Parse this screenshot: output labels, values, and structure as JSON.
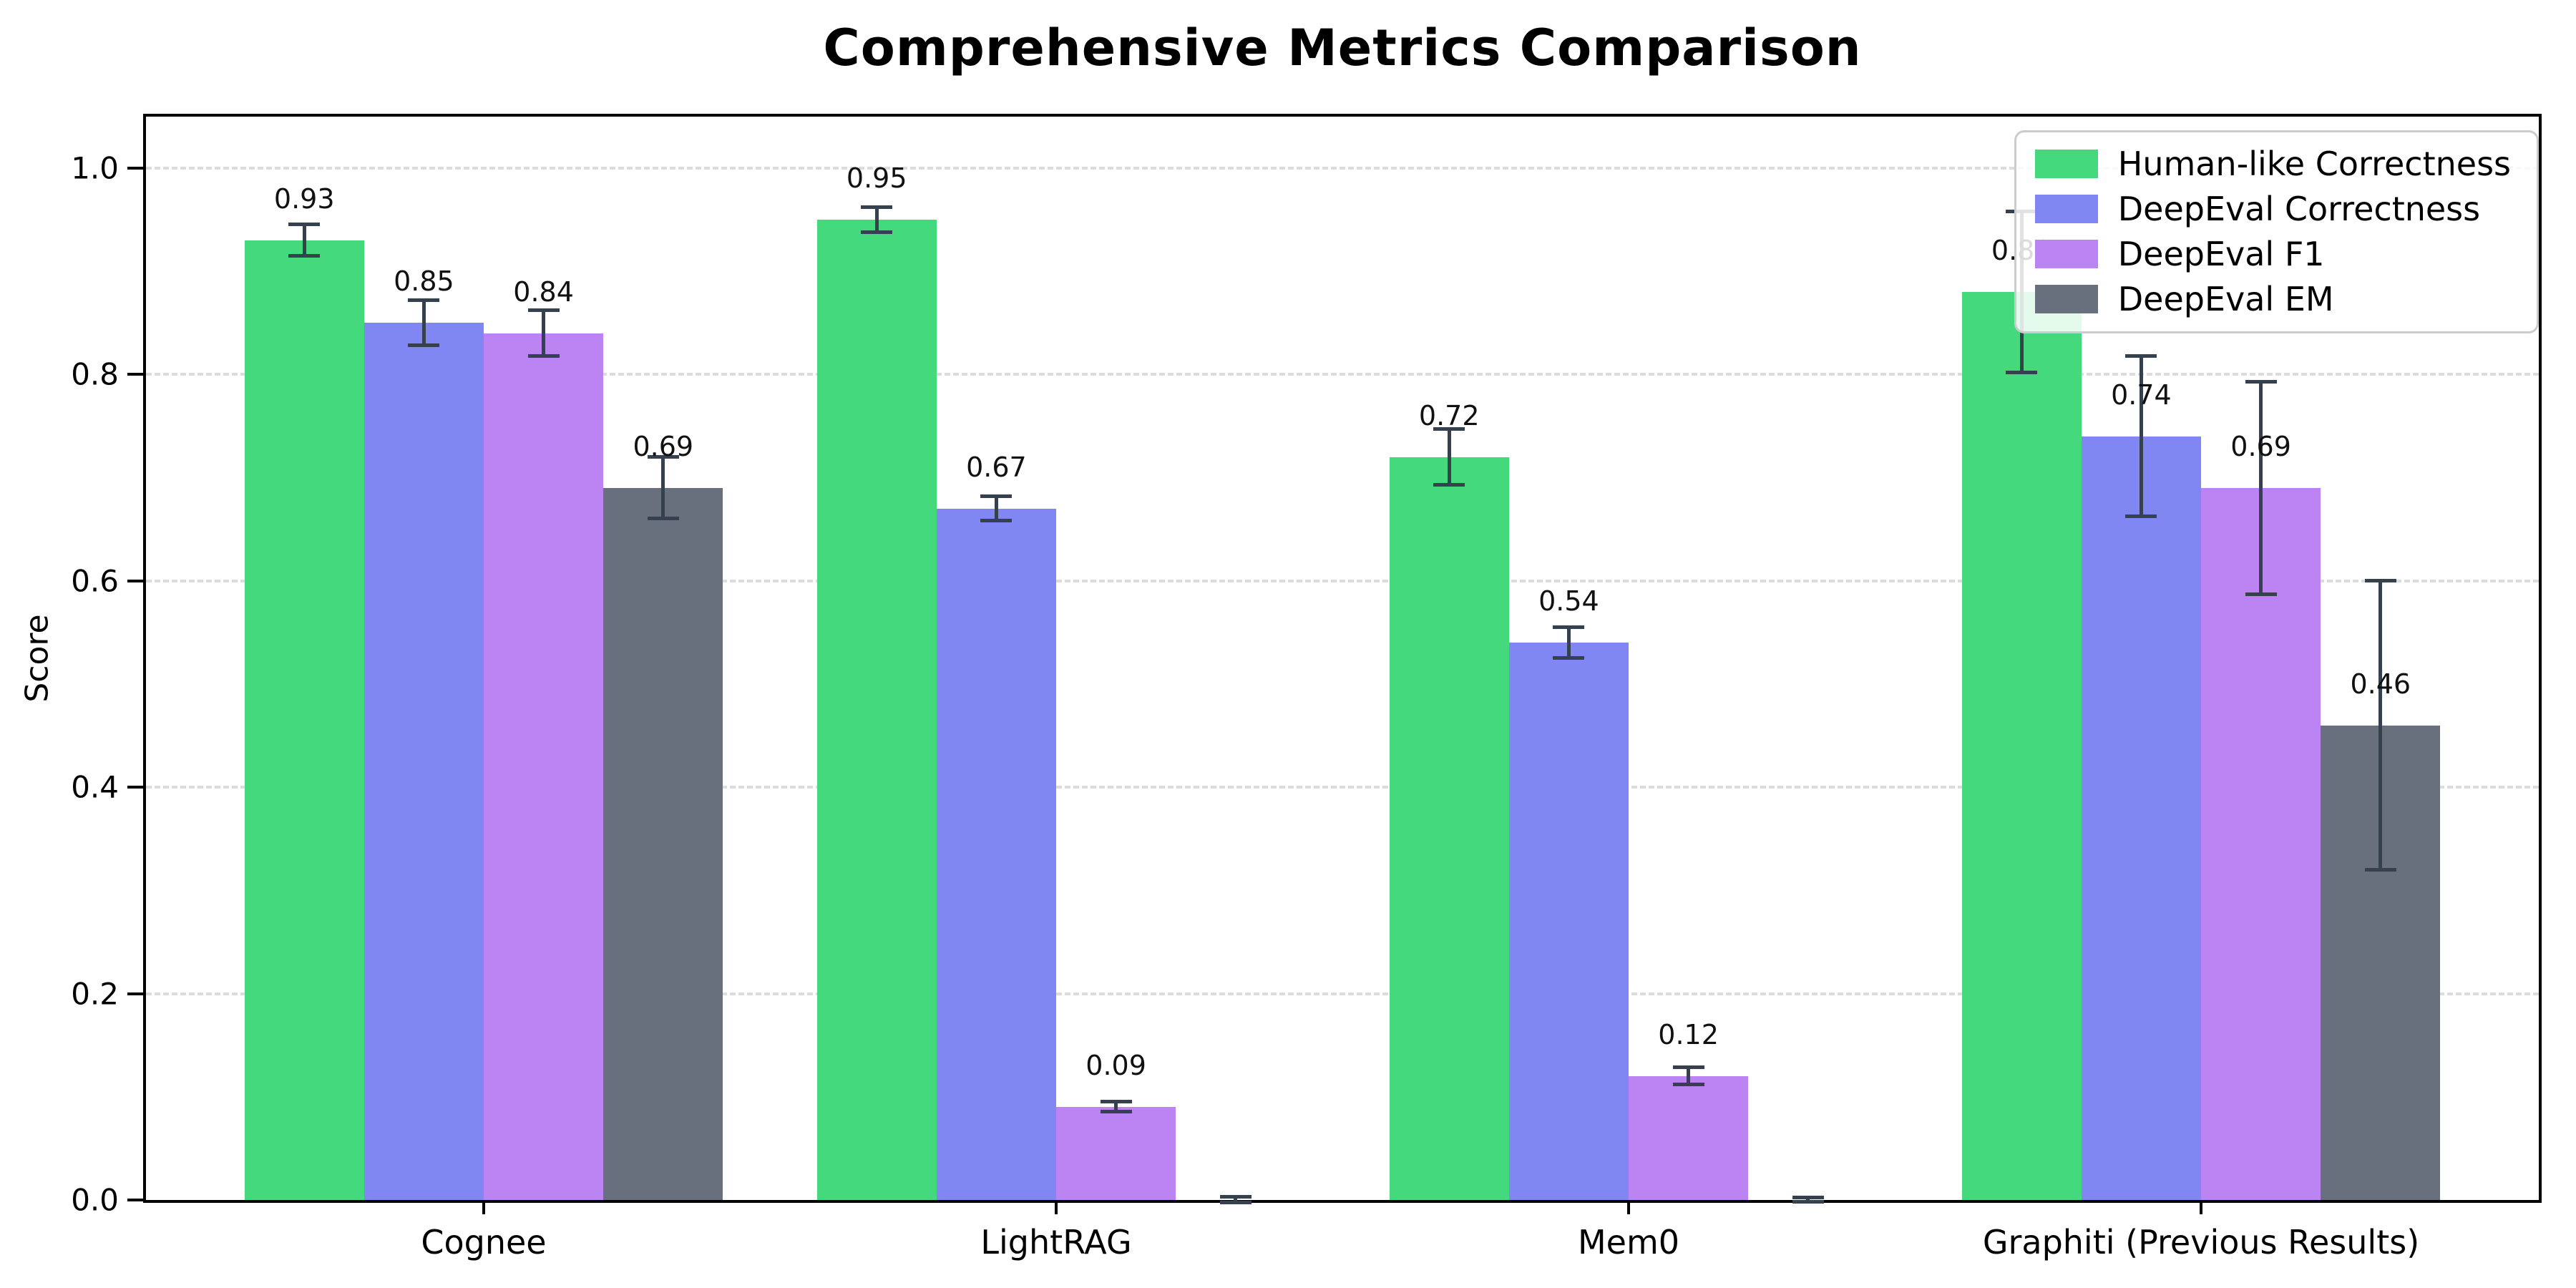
{
  "title": "Comprehensive Metrics Comparison",
  "chart_data": {
    "type": "bar",
    "title": "Comprehensive Metrics Comparison",
    "xlabel": "",
    "ylabel": "Score",
    "ylim": [
      0,
      1.05
    ],
    "yticks": [
      0.0,
      0.2,
      0.4,
      0.6,
      0.8,
      1.0
    ],
    "ytick_labels": [
      "0.0",
      "0.2",
      "0.4",
      "0.6",
      "0.8",
      "1.0"
    ],
    "grid": "horizontal-dashed",
    "legend_position": "upper-right",
    "error_bars": true,
    "error_bar_color": "#364150",
    "categories": [
      "Cognee",
      "LightRAG",
      "Mem0",
      "Graphiti (Previous Results)"
    ],
    "series": [
      {
        "name": "Human-like Correctness",
        "color": "#45d97d",
        "values": [
          0.93,
          0.95,
          0.72,
          0.88
        ],
        "errors": [
          0.015,
          0.012,
          0.027,
          0.078
        ],
        "labels": [
          "0.93",
          "0.95",
          "0.72",
          "0.88"
        ]
      },
      {
        "name": "DeepEval Correctness",
        "color": "#8187f2",
        "values": [
          0.85,
          0.67,
          0.54,
          0.74
        ],
        "errors": [
          0.022,
          0.012,
          0.015,
          0.078
        ],
        "labels": [
          "0.85",
          "0.67",
          "0.54",
          "0.74"
        ]
      },
      {
        "name": "DeepEval F1",
        "color": "#bc83f3",
        "values": [
          0.84,
          0.09,
          0.12,
          0.69
        ],
        "errors": [
          0.022,
          0.005,
          0.008,
          0.103
        ],
        "labels": [
          "0.84",
          "0.09",
          "0.12",
          "0.69"
        ]
      },
      {
        "name": "DeepEval EM",
        "color": "#68707e",
        "values": [
          0.69,
          0.0,
          0.0,
          0.46
        ],
        "errors": [
          0.03,
          0.003,
          0.002,
          0.14
        ],
        "labels": [
          "0.69",
          null,
          null,
          "0.46"
        ]
      }
    ]
  }
}
